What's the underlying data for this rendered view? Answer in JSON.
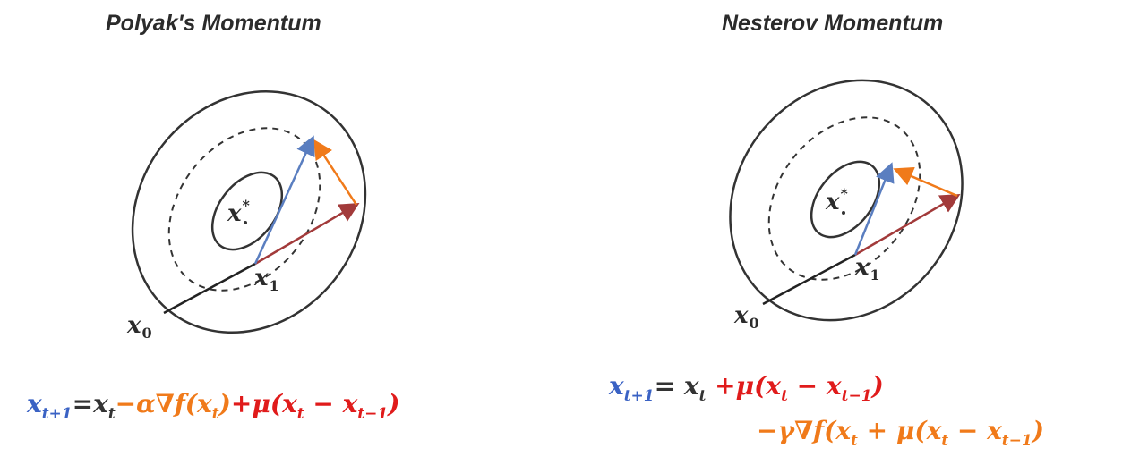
{
  "titles": {
    "left": "Polyak's Momentum",
    "right": "Nesterov Momentum"
  },
  "labels": {
    "x_star": "x",
    "x_star_sup": "*",
    "x1": "x",
    "x1_sub": "1",
    "x0": "x",
    "x0_sub": "0"
  },
  "polyak_equation": {
    "lhs": "x",
    "lhs_sub": "t+1",
    "equals": "=",
    "xt": "x",
    "xt_sub": "t",
    "grad_term_pre": "−α∇f(x",
    "grad_term_sub": "t",
    "grad_term_post": ")",
    "momentum_pre": "+μ(x",
    "momentum_sub1": "t",
    "momentum_mid": " − x",
    "momentum_sub2": "t−1",
    "momentum_post": ")"
  },
  "nesterov_equation": {
    "lhs": "x",
    "lhs_sub": "t+1",
    "equals": "=",
    "xt": "x",
    "xt_sub": "t",
    "momentum_pre": "+μ(x",
    "momentum_sub1": "t",
    "momentum_mid": " − x",
    "momentum_sub2": "t−1",
    "momentum_post": ")",
    "grad_pre": "−γ∇f(x",
    "grad_sub1": "t",
    "grad_mid": " + μ(x",
    "grad_sub2": "t",
    "grad_mid2": " − x",
    "grad_sub3": "t−1",
    "grad_post": ")"
  },
  "colors": {
    "contour": "#333333",
    "blue_arrow": "#5a7ec0",
    "red_arrow": "#a23a3a",
    "orange_arrow": "#f07a1a",
    "eq_blue": "#3a62c4",
    "eq_orange": "#f07a1a",
    "eq_red": "#e01b1b",
    "eq_dark": "#333333"
  }
}
